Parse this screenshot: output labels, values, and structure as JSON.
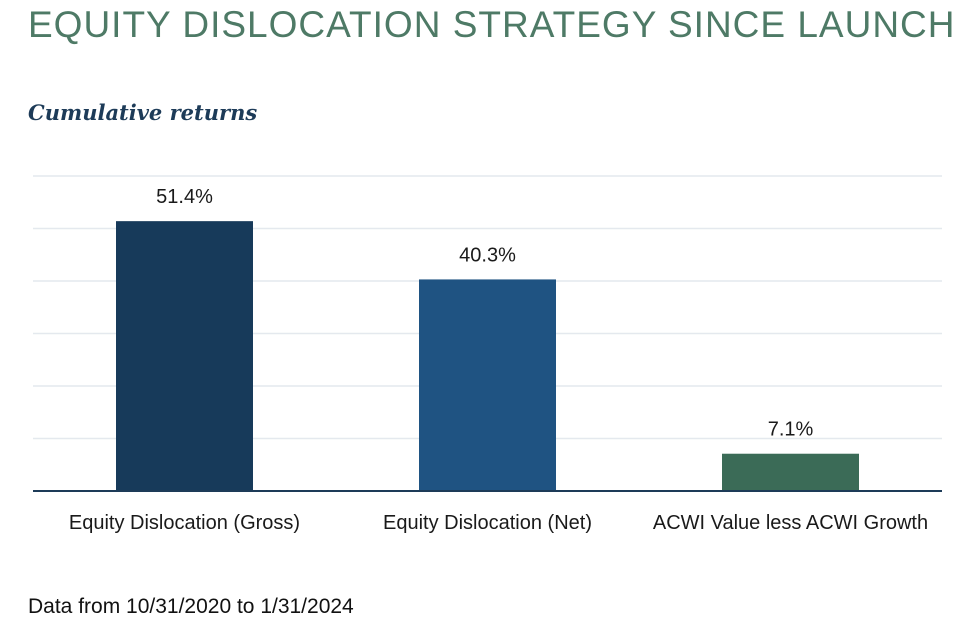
{
  "header": {
    "title": "EQUITY DISLOCATION STRATEGY SINCE LAUNCH",
    "subtitle": "Cumulative returns"
  },
  "footnote": "Data from 10/31/2020 to 1/31/2024",
  "chart_data": {
    "type": "bar",
    "title": "EQUITY DISLOCATION STRATEGY SINCE LAUNCH",
    "subtitle": "Cumulative returns",
    "categories": [
      "Equity Dislocation (Gross)",
      "Equity Dislocation (Net)",
      "ACWI Value less ACWI Growth"
    ],
    "values": [
      51.4,
      40.3,
      7.1
    ],
    "value_labels": [
      "51.4%",
      "40.3%",
      "7.1%"
    ],
    "colors": [
      "#173a5a",
      "#1f5382",
      "#3b6b57"
    ],
    "xlabel": "",
    "ylabel": "",
    "ylim": [
      0,
      60
    ],
    "grid": true,
    "gridline_count": 6,
    "legend": "none"
  }
}
